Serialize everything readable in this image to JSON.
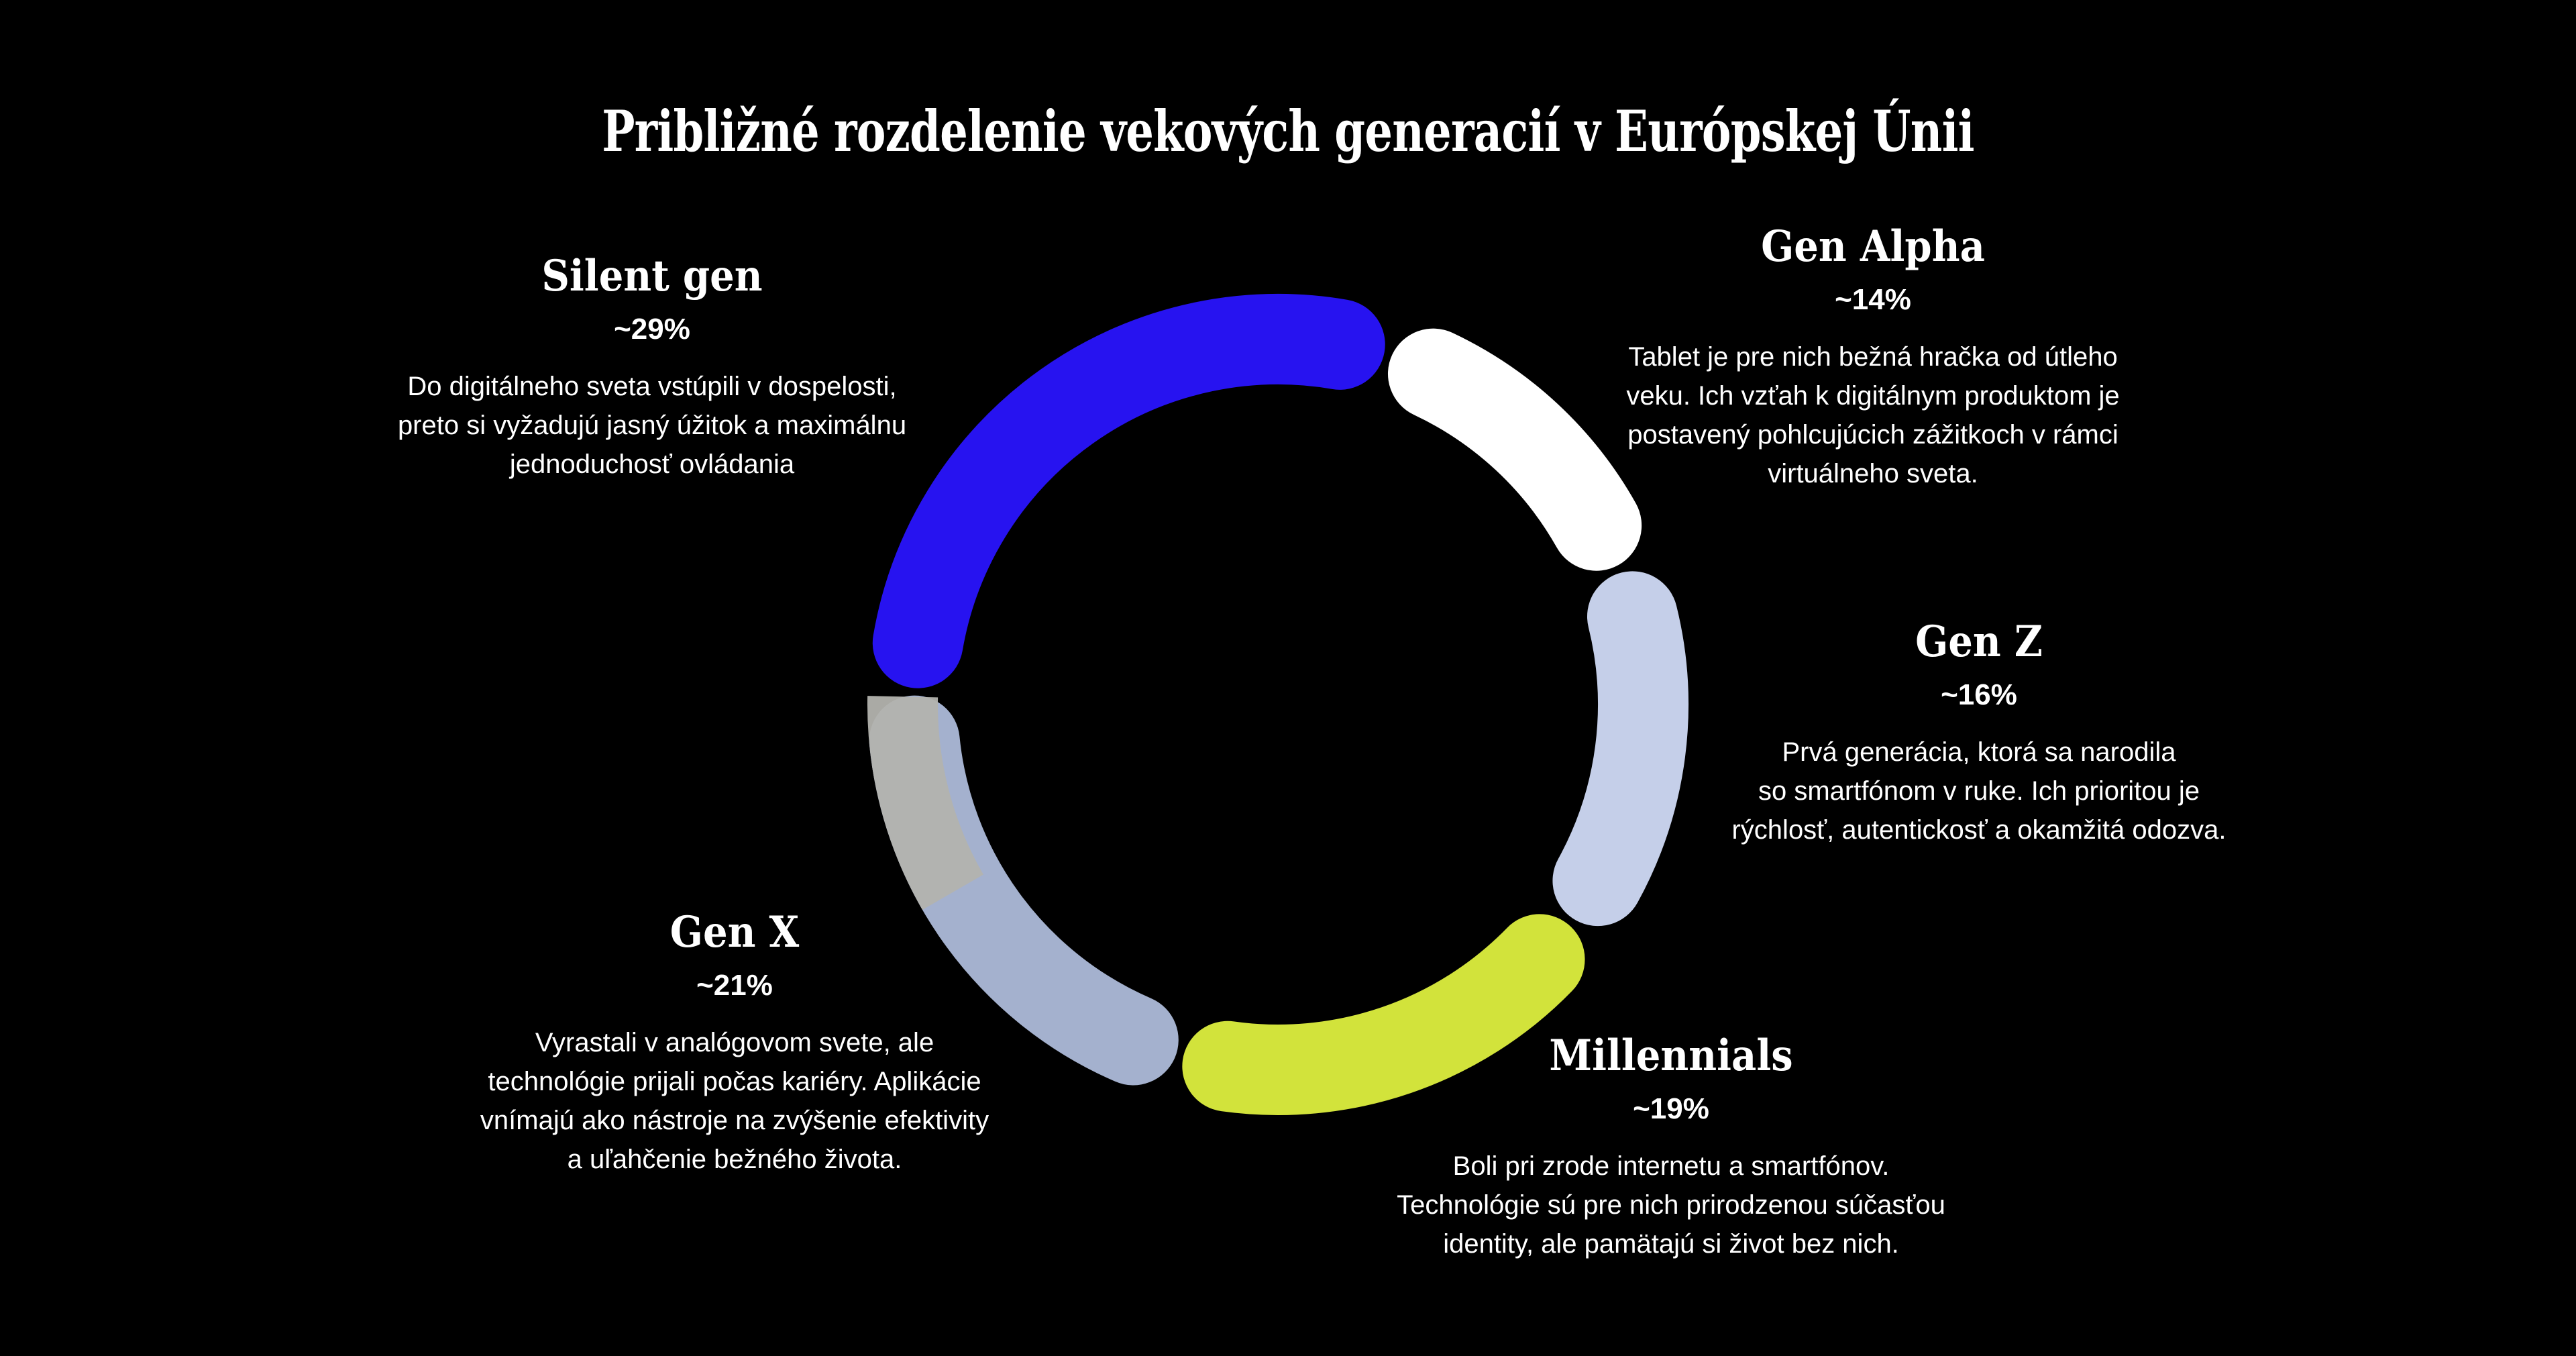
{
  "page": {
    "background": "#000000",
    "text_color": "#ffffff"
  },
  "title": "Približné rozdelenie vekových generacií v Európskej Únii",
  "sections": [
    {
      "id": "silent-gen",
      "title": "Silent gen",
      "pct_label": "~29%",
      "description": "Do digitálneho sveta vstúpili v dospelosti,\npreto si vyžadujú jasný úžitok a maximálnu\njednoduchosť ovládania"
    },
    {
      "id": "gen-alpha",
      "title": "Gen Alpha",
      "pct_label": "~14%",
      "description": "Tablet je pre nich bežná hračka od útleho\nveku. Ich vzťah k digitálnym produktom je\npostavený pohlcujúcich zážitkoch v rámci\nvirtuálneho sveta."
    },
    {
      "id": "gen-z",
      "title": "Gen Z",
      "pct_label": "~16%",
      "description": "Prvá generácia, ktorá sa narodila\nso smartfónom v ruke. Ich prioritou je\nrýchlosť, autentickosť a okamžitá odozva."
    },
    {
      "id": "millennials",
      "title": "Millennials",
      "pct_label": "~19%",
      "description": "Boli pri zrode internetu a smartfónov.\nTechnológie sú pre nich prirodzenou súčasťou\nidentity, ale pamätajú si život bez nich."
    },
    {
      "id": "gen-x",
      "title": "Gen X",
      "pct_label": "~21%",
      "description": "Vyrastali v analógovom svete, ale\ntechnológie prijali počas kariéry. Aplikácie\nvnímajú ako nástroje na zvýšenie efektivity\na uľahčenie bežného života."
    }
  ],
  "chart_data": {
    "type": "donut",
    "title": "Približné rozdelenie vekových generacií v Európskej Únii",
    "categories": [
      "Silent gen",
      "Gen Alpha",
      "Gen Z",
      "Millennials",
      "Gen X"
    ],
    "values": [
      29,
      14,
      16,
      19,
      21
    ],
    "value_labels": [
      "~29%",
      "~14%",
      "~16%",
      "~19%",
      "~21%"
    ],
    "segment_ids": [
      "silent-gen",
      "gen-alpha",
      "gen-z",
      "millennials",
      "gen-x"
    ],
    "colors": [
      "#2713f0",
      "#ffffff",
      "#c5cfe9",
      "#d2e33b",
      "#a4b1ce"
    ],
    "background": "#000000",
    "legend": "none",
    "geometry": {
      "start_angle_deg": 272,
      "direction": "clockwise",
      "mid_radius": 544.5,
      "ring_width": 135,
      "gap_deg": 1.2,
      "rounded_caps": true
    },
    "overlay_band": {
      "name": "gray-highlight-band",
      "color": "#b3b3ae",
      "opacity": 0.95,
      "radius": 559.5,
      "width": 105,
      "from_deg": 240.0,
      "to_deg": 271.2
    }
  }
}
